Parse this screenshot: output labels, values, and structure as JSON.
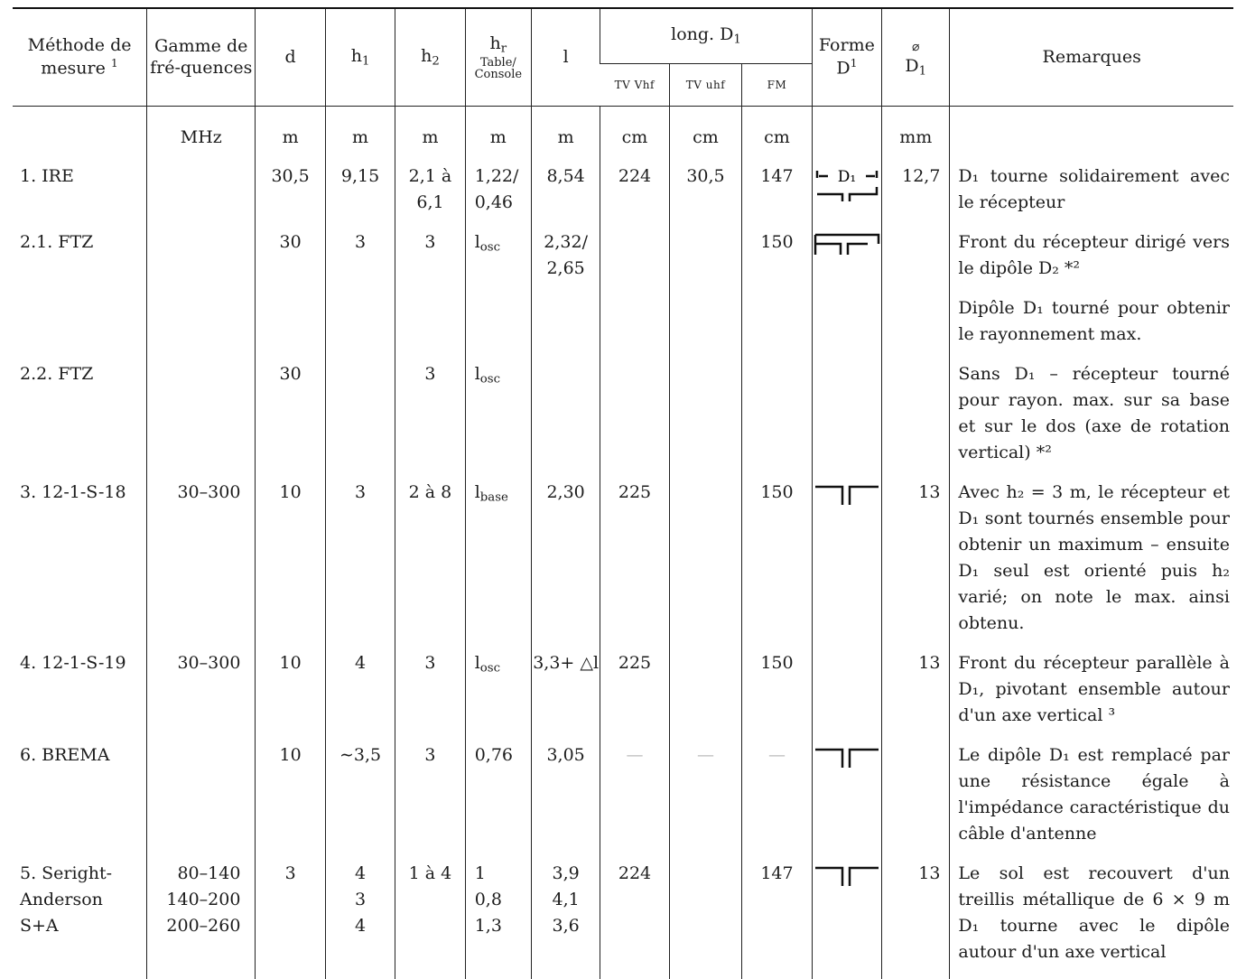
{
  "headers": {
    "methode": "Méthode de mesure",
    "methode_sup": "1",
    "gamme": "Gamme de fré-quences",
    "d": "d",
    "h1": "h",
    "h1_sub": "1",
    "h2": "h",
    "h2_sub": "2",
    "hr": "h",
    "hr_sub": "r",
    "hr_note": "Table/ Console",
    "l": "l",
    "long": "long. D",
    "long_sub": "1",
    "tv_vhf": "TV Vhf",
    "tv_uhf": "TV uhf",
    "fm": "FM",
    "forme": "Forme",
    "forme_d": "D",
    "forme_sup": "1",
    "diam_symbol": "⌀",
    "diam_d": "D",
    "diam_sub": "1",
    "remarques": "Remarques"
  },
  "units": {
    "gamme": "MHz",
    "d": "m",
    "h1": "m",
    "h2": "m",
    "hr": "m",
    "l": "m",
    "tv_vhf": "cm",
    "tv_uhf": "cm",
    "fm": "cm",
    "diam": "mm"
  },
  "rows": [
    {
      "method": "1. IRE",
      "gamme": "",
      "d": "30,5",
      "h1": "9,15",
      "h2": "2,1 à 6,1",
      "hr": "1,22/ 0,46",
      "hr_sub": "",
      "l": "8,54",
      "vhf": "224",
      "uhf": "30,5",
      "fm": "147",
      "forme": "ire",
      "forme_label": "D₁",
      "diam": "12,7",
      "rem": "D₁ tourne solidairement avec le récepteur"
    },
    {
      "method": "2.1. FTZ",
      "gamme": "",
      "d": "30",
      "h1": "3",
      "h2": "3",
      "hr": "l",
      "hr_sub": "osc",
      "l": "2,32/ 2,65",
      "vhf": "",
      "uhf": "",
      "fm": "150",
      "forme": "box",
      "diam": "",
      "rem": "Front du récepteur dirigé vers le dipôle D₂ *²"
    },
    {
      "method": "",
      "gamme": "",
      "d": "",
      "h1": "",
      "h2": "",
      "hr": "",
      "hr_sub": "",
      "l": "",
      "vhf": "",
      "uhf": "",
      "fm": "",
      "forme": "",
      "diam": "",
      "rem": "Dipôle D₁ tourné pour obtenir le rayonnement max."
    },
    {
      "method": "2.2. FTZ",
      "gamme": "",
      "d": "30",
      "h1": "",
      "h2": "3",
      "hr": "l",
      "hr_sub": "osc",
      "l": "",
      "vhf": "",
      "uhf": "",
      "fm": "",
      "forme": "",
      "diam": "",
      "rem": "Sans D₁ – récepteur tourné pour rayon. max. sur sa base et sur le dos (axe de rotation vertical) *²"
    },
    {
      "method": "3. 12-1-S-18",
      "gamme": "30–300",
      "d": "10",
      "h1": "3",
      "h2": "2 à 8",
      "hr": "l",
      "hr_sub": "base",
      "l": "2,30",
      "vhf": "225",
      "uhf": "",
      "fm": "150",
      "forme": "dipole",
      "diam": "13",
      "rem": "Avec h₂ = 3 m, le récepteur et D₁ sont tournés ensemble pour obtenir un maximum – ensuite D₁ seul est orienté puis h₂ varié; on note le max. ainsi obtenu."
    },
    {
      "method": "4. 12-1-S-19",
      "gamme": "30–300",
      "d": "10",
      "h1": "4",
      "h2": "3",
      "hr": "l",
      "hr_sub": "osc",
      "l": "3,3+ △l",
      "vhf": "225",
      "uhf": "",
      "fm": "150",
      "forme": "",
      "diam": "13",
      "rem": "Front du récepteur parallèle à D₁, pivotant ensemble autour d'un axe vertical ³"
    },
    {
      "method": "6. BREMA",
      "gamme": "",
      "d": "10",
      "h1": "∼3,5",
      "h2": "3",
      "hr": "0,76",
      "hr_sub": "",
      "l": "3,05",
      "vhf": "—",
      "uhf": "—",
      "fm": "—",
      "forme": "dipole",
      "diam": "",
      "rem": "Le dipôle D₁ est remplacé par une résistance égale à l'impédance caractéristique du câble d'antenne"
    },
    {
      "method": "5. Seright-\n   Anderson\n   S+A",
      "gamme": "80–140\n140–200\n200–260",
      "d": "3",
      "h1": "4\n3\n4",
      "h2": "1 à 4",
      "hr": "1\n0,8\n1,3",
      "hr_sub": "",
      "l": "3,9\n4,1\n3,6",
      "vhf": "224",
      "uhf": "",
      "fm": "147",
      "forme": "dipole",
      "diam": "13",
      "rem": "Le sol est recouvert d'un treillis métallique de 6 × 9 m D₁ tourne avec le dipôle autour d'un axe vertical"
    }
  ]
}
